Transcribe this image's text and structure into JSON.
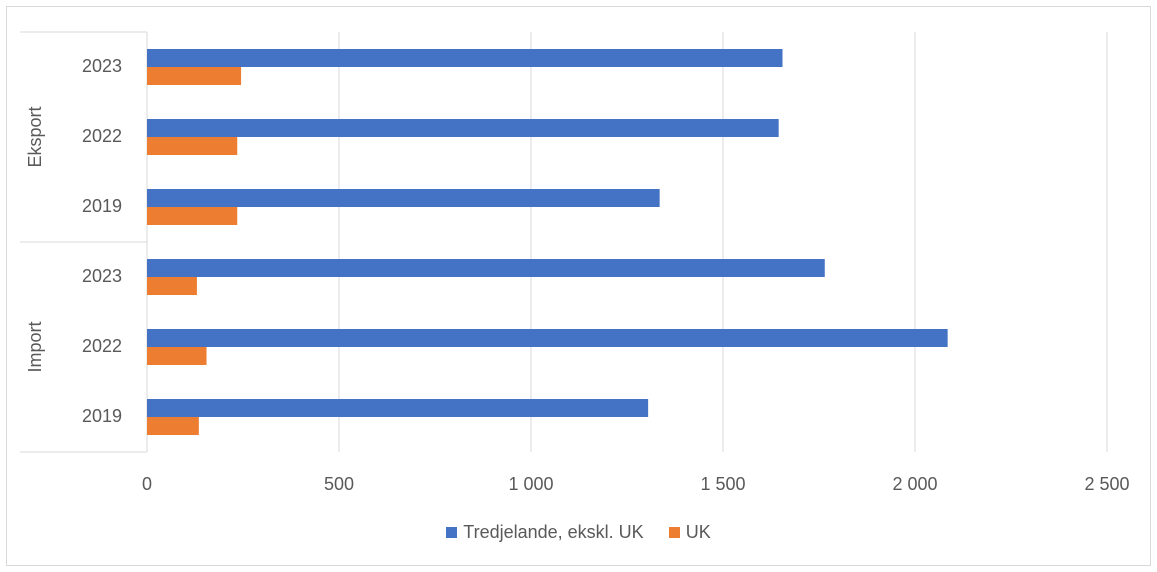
{
  "chart_data": {
    "type": "bar",
    "orientation": "horizontal",
    "title": "",
    "xlabel": "",
    "ylabel": "",
    "xlim": [
      0,
      2500
    ],
    "x_ticks": [
      0,
      500,
      1000,
      1500,
      2000,
      2500
    ],
    "x_tick_labels": [
      "0",
      "500",
      "1 000",
      "1 500",
      "2 000",
      "2 500"
    ],
    "grid": "vertical",
    "legend_position": "bottom",
    "groups": [
      {
        "name": "Eksport",
        "categories": [
          "2023",
          "2022",
          "2019"
        ]
      },
      {
        "name": "Import",
        "categories": [
          "2023",
          "2022",
          "2019"
        ]
      }
    ],
    "series": [
      {
        "name": "Tredjelande, ekskl. UK",
        "color": "#4472C4",
        "values": [
          1655,
          1645,
          1335,
          1765,
          2085,
          1305
        ]
      },
      {
        "name": "UK",
        "color": "#ED7D31",
        "values": [
          245,
          235,
          235,
          130,
          155,
          135
        ]
      }
    ]
  }
}
